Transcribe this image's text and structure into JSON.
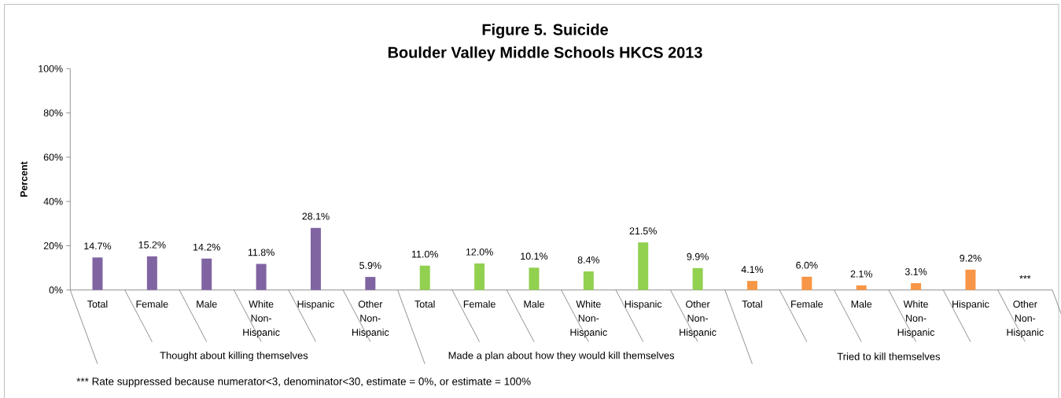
{
  "chart_data": {
    "type": "bar",
    "title": "Figure 5. Suicide",
    "subtitle": "Boulder Valley Middle Schools HKCS 2013",
    "ylabel": "Percent",
    "categories": [
      "Total",
      "Female",
      "Male",
      "White Non-Hispanic",
      "Hispanic",
      "Other Non-Hispanic",
      "Total",
      "Female",
      "Male",
      "White Non-Hispanic",
      "Hispanic",
      "Other Non-Hispanic",
      "Total",
      "Female",
      "Male",
      "White Non-Hispanic",
      "Hispanic",
      "Other Non-Hispanic"
    ],
    "values": [
      14.7,
      15.2,
      14.2,
      11.8,
      28.1,
      5.9,
      11.0,
      12.0,
      10.1,
      8.4,
      21.5,
      9.9,
      4.1,
      6.0,
      2.1,
      3.1,
      9.2,
      null
    ],
    "colors": [
      "#8064a2",
      "#8064a2",
      "#8064a2",
      "#8064a2",
      "#8064a2",
      "#8064a2",
      "#92d050",
      "#92d050",
      "#92d050",
      "#92d050",
      "#92d050",
      "#92d050",
      "#f79646",
      "#f79646",
      "#f79646",
      "#f79646",
      "#f79646",
      "#f79646"
    ],
    "value_labels": [
      "14.7%",
      "15.2%",
      "14.2%",
      "11.8%",
      "28.1%",
      "5.9%",
      "11.0%",
      "12.0%",
      "10.1%",
      "8.4%",
      "21.5%",
      "9.9%",
      "4.1%",
      "6.0%",
      "2.1%",
      "3.1%",
      "9.2%",
      "***"
    ],
    "ylim": [
      0,
      100
    ],
    "yticks": [
      {
        "value": 0,
        "label": "0%"
      },
      {
        "value": 20,
        "label": "20%"
      },
      {
        "value": 40,
        "label": "40%"
      },
      {
        "value": 60,
        "label": "60%"
      },
      {
        "value": 80,
        "label": "80%"
      },
      {
        "value": 100,
        "label": "100%"
      }
    ],
    "annotations": [
      "Thought about killing themselves",
      "Made a plan about how they would kill themselves",
      "Tried to kill themselves",
      "*** Rate suppressed because numerator<3, denominator<30, estimate = 0%, or estimate = 100%"
    ]
  }
}
